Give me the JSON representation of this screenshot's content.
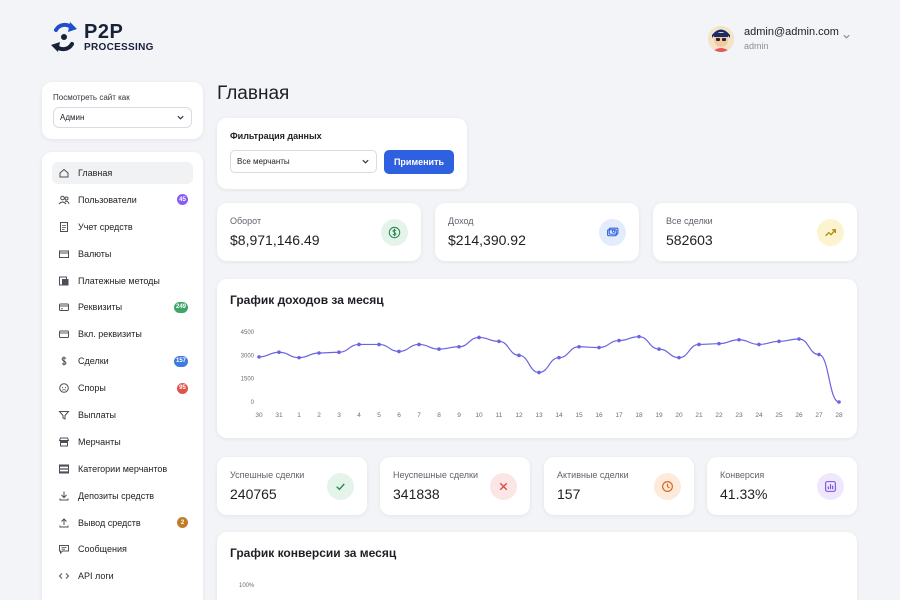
{
  "brand": {
    "name": "P2P",
    "sub": "PROCESSING"
  },
  "user": {
    "email": "admin@admin.com",
    "role": "admin"
  },
  "view_as": {
    "label": "Посмотреть сайт как",
    "value": "Админ"
  },
  "nav": [
    {
      "label": "Главная",
      "icon": "home-icon",
      "active": true
    },
    {
      "label": "Пользователи",
      "icon": "users-icon",
      "badge": "45",
      "badge_color": "#8a5cf0"
    },
    {
      "label": "Учет средств",
      "icon": "document-icon"
    },
    {
      "label": "Валюты",
      "icon": "currency-icon"
    },
    {
      "label": "Платежные методы",
      "icon": "payment-methods-icon"
    },
    {
      "label": "Реквизиты",
      "icon": "card-icon",
      "badge": "249",
      "badge_color": "#3ea56a"
    },
    {
      "label": "Вкл. реквизиты",
      "icon": "card-on-icon"
    },
    {
      "label": "Сделки",
      "icon": "dollar-icon",
      "badge": "157",
      "badge_color": "#3f7ae0"
    },
    {
      "label": "Споры",
      "icon": "dispute-icon",
      "badge": "95",
      "badge_color": "#e0534a"
    },
    {
      "label": "Выплаты",
      "icon": "filter-icon"
    },
    {
      "label": "Мерчанты",
      "icon": "store-icon"
    },
    {
      "label": "Категории мерчантов",
      "icon": "category-icon"
    },
    {
      "label": "Депозиты средств",
      "icon": "download-icon"
    },
    {
      "label": "Вывод средств",
      "icon": "upload-icon",
      "badge": "2",
      "badge_color": "#c27d2a"
    },
    {
      "label": "Сообщения",
      "icon": "message-icon"
    },
    {
      "label": "API логи",
      "icon": "code-icon"
    }
  ],
  "page": {
    "title": "Главная"
  },
  "filter": {
    "title": "Фильтрация данных",
    "merchant": "Все мерчанты",
    "apply": "Применить"
  },
  "stats_top": [
    {
      "label": "Оборот",
      "value": "$8,971,146.49",
      "icon": "dollar-circle-icon",
      "icon_bg": "#e4f4ea",
      "icon_color": "#2f8a52"
    },
    {
      "label": "Доход",
      "value": "$214,390.92",
      "icon": "money-icon",
      "icon_bg": "#e3ecfb",
      "icon_color": "#2f60e0"
    },
    {
      "label": "Все сделки",
      "value": "582603",
      "icon": "trend-up-icon",
      "icon_bg": "#fbf4cf",
      "icon_color": "#b48a10"
    }
  ],
  "stats_bottom": [
    {
      "label": "Успешные сделки",
      "value": "240765",
      "icon": "check-icon",
      "icon_bg": "#e4f4ea",
      "icon_color": "#2f8a52"
    },
    {
      "label": "Неуспешные сделки",
      "value": "341838",
      "icon": "x-icon",
      "icon_bg": "#fbe6e5",
      "icon_color": "#d9473e"
    },
    {
      "label": "Активные сделки",
      "value": "157",
      "icon": "clock-icon",
      "icon_bg": "#fdeadb",
      "icon_color": "#d96a20"
    },
    {
      "label": "Конверсия",
      "value": "41.33%",
      "icon": "chart-icon",
      "icon_bg": "#efe8fc",
      "icon_color": "#7a4fe0"
    }
  ],
  "income_chart": {
    "title": "График доходов за месяц"
  },
  "conversion_chart": {
    "title": "График конверсии за месяц",
    "first_tick": "100%"
  },
  "chart_data": [
    {
      "type": "line",
      "title": "График доходов за месяц",
      "x": [
        "30",
        "31",
        "1",
        "2",
        "3",
        "4",
        "5",
        "6",
        "7",
        "8",
        "9",
        "10",
        "11",
        "12",
        "13",
        "14",
        "15",
        "16",
        "17",
        "18",
        "19",
        "20",
        "21",
        "22",
        "23",
        "24",
        "25",
        "26",
        "27",
        "28"
      ],
      "y_ticks": [
        0,
        1500,
        3000,
        4500
      ],
      "ylim": [
        0,
        4500
      ],
      "series": [
        {
          "values": [
            2900,
            3200,
            2850,
            3150,
            3200,
            3700,
            3700,
            3250,
            3700,
            3400,
            3550,
            4150,
            3900,
            3000,
            1900,
            2850,
            3550,
            3500,
            3950,
            4200,
            3400,
            2850,
            3700,
            3750,
            4000,
            3700,
            3900,
            4050,
            3050,
            0
          ]
        }
      ],
      "color": "#6b63e0",
      "grid": false
    },
    {
      "type": "line",
      "title": "График конверсии за месяц",
      "y_ticks_visible": [
        "100%"
      ]
    }
  ]
}
